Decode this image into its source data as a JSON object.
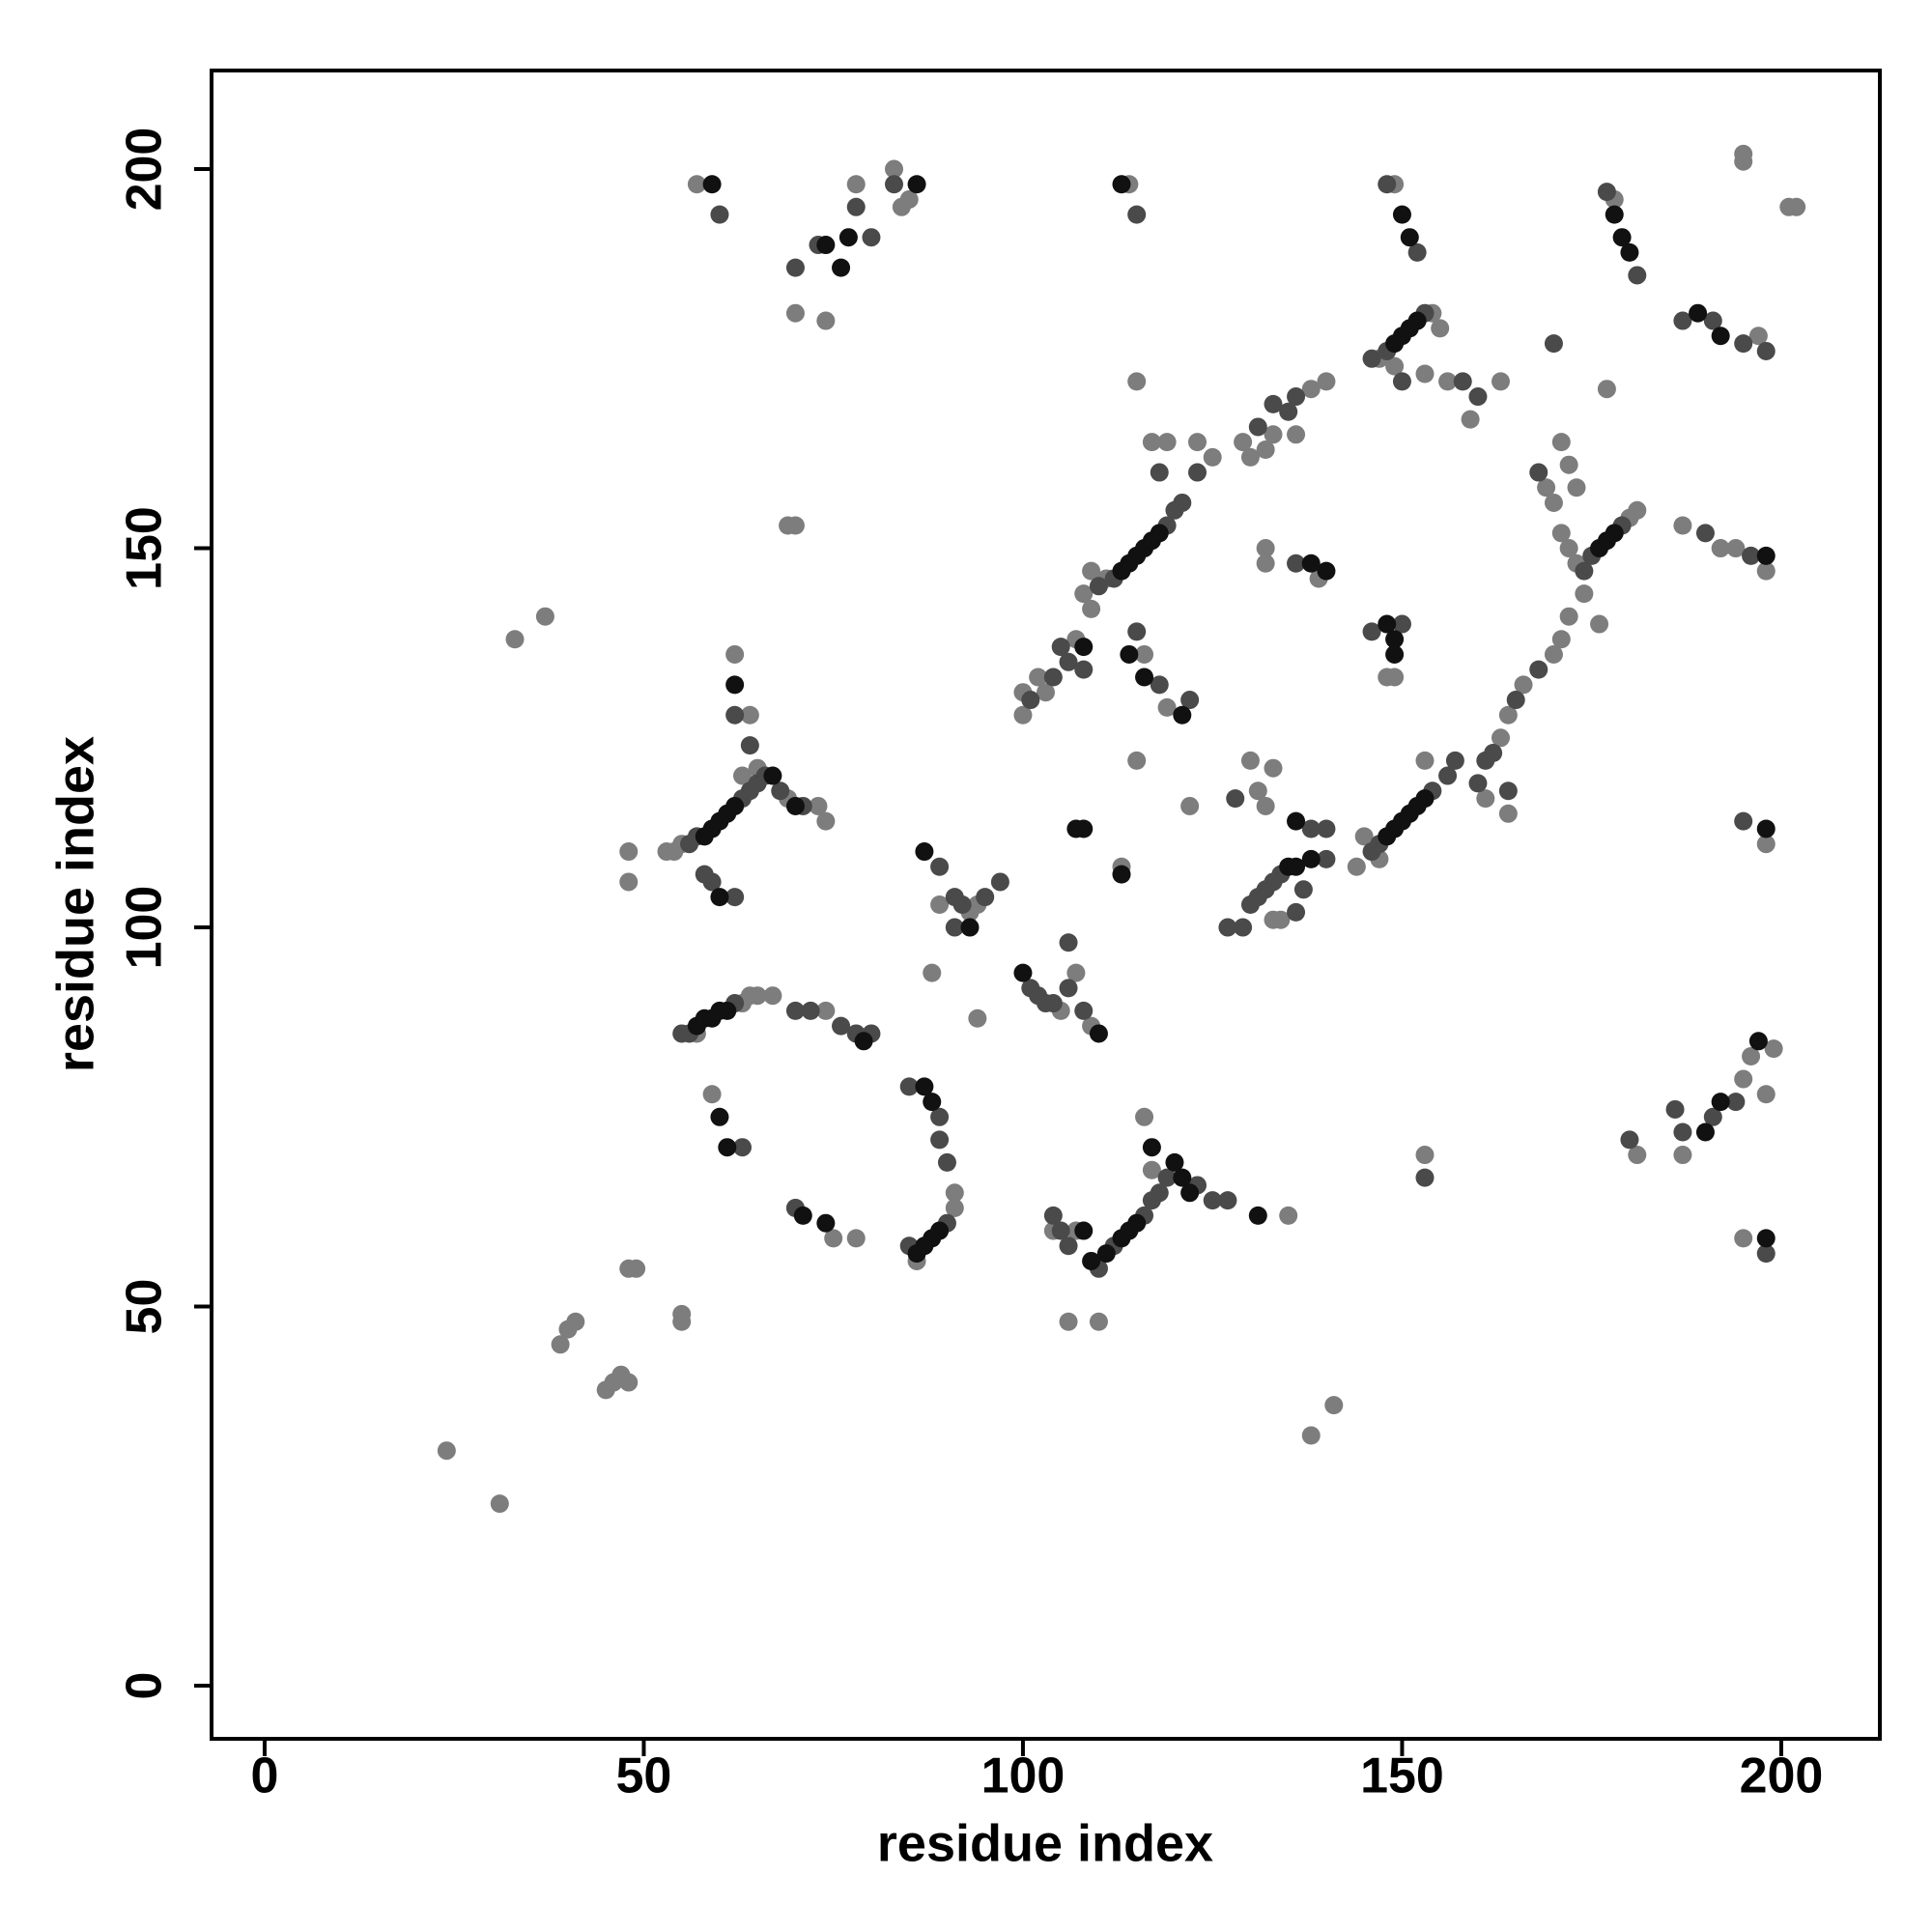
{
  "chart_data": {
    "type": "scatter",
    "xlabel": "residue index",
    "ylabel": "residue index",
    "xlim": [
      -7,
      213
    ],
    "ylim": [
      -7,
      213
    ],
    "xticks": [
      0,
      50,
      100,
      150,
      200
    ],
    "yticks": [
      0,
      50,
      100,
      150,
      200
    ],
    "grid": false,
    "series": [
      {
        "color": "#7d7d7d",
        "x": [
          57,
          84,
          85,
          83,
          70,
          74,
          78,
          114,
          149,
          178,
          197,
          147,
          154,
          155,
          149,
          153,
          156,
          163,
          159,
          138,
          140,
          129,
          130,
          132,
          133,
          136,
          125,
          123,
          108,
          109,
          111,
          119,
          117,
          115,
          109,
          107,
          102,
          100,
          100,
          103,
          116,
          119,
          115,
          122,
          139,
          132,
          132,
          149,
          148,
          144,
          145,
          147,
          153,
          163,
          164,
          166,
          170,
          171,
          172,
          164,
          161,
          169,
          170,
          171,
          172,
          173,
          180,
          181,
          174,
          176,
          171,
          172,
          173,
          177,
          187,
          192,
          194,
          198,
          198,
          195,
          196,
          199,
          198,
          181,
          187,
          195,
          153,
          53,
          54,
          55,
          69,
          73,
          74,
          62,
          64,
          63,
          65,
          48,
          48,
          69,
          70,
          33,
          37,
          57,
          63,
          64,
          65,
          67,
          74,
          59,
          70,
          75,
          78,
          91,
          91,
          86,
          93,
          94,
          89,
          88,
          94,
          105,
          107,
          109,
          113,
          107,
          110,
          106,
          104,
          116,
          117,
          135,
          133,
          130,
          131,
          132,
          133,
          134,
          24,
          31,
          39,
          40,
          41,
          45,
          46,
          47,
          48,
          48,
          49,
          55,
          55,
          138,
          141,
          202,
          201,
          195,
          195
        ],
        "values": [
          198,
          195,
          196,
          200,
          181,
          180,
          198,
          198,
          198,
          196,
          178,
          175,
          181,
          179,
          174,
          173,
          172,
          172,
          167,
          171,
          172,
          164,
          162,
          163,
          165,
          165,
          162,
          164,
          144,
          147,
          146,
          164,
          164,
          172,
          142,
          138,
          133,
          131,
          128,
          131,
          136,
          129,
          122,
          116,
          146,
          150,
          148,
          133,
          133,
          108,
          112,
          109,
          122,
          125,
          128,
          132,
          136,
          138,
          141,
          115,
          117,
          158,
          156,
          152,
          150,
          148,
          154,
          155,
          144,
          140,
          164,
          161,
          158,
          171,
          153,
          150,
          150,
          147,
          111,
          80,
          83,
          84,
          78,
          70,
          70,
          59,
          70,
          110,
          110,
          111,
          117,
          116,
          114,
          136,
          128,
          120,
          121,
          110,
          106,
          153,
          153,
          138,
          141,
          86,
          90,
          91,
          91,
          91,
          89,
          78,
          63,
          59,
          59,
          65,
          63,
          56,
          102,
          103,
          103,
          94,
          88,
          89,
          94,
          87,
          108,
          60,
          48,
          48,
          60,
          75,
          68,
          62,
          121,
          122,
          118,
          116,
          101,
          101,
          31,
          24,
          45,
          47,
          48,
          39,
          40,
          41,
          40,
          55,
          55,
          48,
          49,
          33,
          37,
          195,
          195,
          202,
          201
        ]
      },
      {
        "color": "#4a4a4a",
        "x": [
          60,
          73,
          78,
          83,
          115,
          148,
          152,
          177,
          181,
          187,
          191,
          195,
          198,
          146,
          148,
          153,
          150,
          160,
          158,
          136,
          133,
          135,
          131,
          123,
          110,
          112,
          119,
          120,
          121,
          118,
          104,
          106,
          105,
          101,
          108,
          115,
          118,
          122,
          136,
          146,
          150,
          146,
          147,
          154,
          156,
          157,
          161,
          162,
          165,
          168,
          164,
          160,
          168,
          174,
          175,
          179,
          170,
          190,
          196,
          195,
          186,
          187,
          191,
          194,
          180,
          198,
          153,
          56,
          57,
          63,
          64,
          65,
          66,
          68,
          71,
          62,
          64,
          59,
          62,
          58,
          55,
          56,
          62,
          70,
          72,
          76,
          78,
          80,
          63,
          70,
          85,
          89,
          89,
          90,
          90,
          85,
          89,
          91,
          92,
          95,
          97,
          91,
          101,
          102,
          103,
          104,
          106,
          108,
          106,
          104,
          105,
          106,
          110,
          112,
          116,
          117,
          118,
          119,
          123,
          125,
          127,
          127,
          129,
          130,
          131,
          132,
          133,
          134,
          140,
          138,
          140,
          128,
          136,
          137,
          70,
          80
        ],
        "values": [
          194,
          190,
          195,
          198,
          194,
          198,
          189,
          197,
          186,
          180,
          180,
          177,
          176,
          175,
          176,
          181,
          172,
          170,
          172,
          170,
          169,
          168,
          166,
          160,
          145,
          146,
          153,
          155,
          156,
          160,
          133,
          135,
          137,
          130,
          134,
          139,
          132,
          130,
          148,
          139,
          140,
          110,
          111,
          118,
          120,
          122,
          122,
          123,
          130,
          134,
          118,
          119,
          160,
          147,
          149,
          153,
          177,
          152,
          149,
          114,
          76,
          73,
          75,
          77,
          72,
          57,
          67,
          111,
          112,
          117,
          118,
          119,
          120,
          118,
          116,
          128,
          124,
          106,
          104,
          107,
          86,
          86,
          90,
          89,
          89,
          87,
          86,
          86,
          71,
          63,
          79,
          75,
          72,
          69,
          61,
          58,
          108,
          104,
          103,
          104,
          106,
          100,
          92,
          91,
          90,
          90,
          92,
          89,
          98,
          62,
          60,
          58,
          55,
          58,
          62,
          64,
          65,
          67,
          66,
          64,
          64,
          100,
          100,
          103,
          104,
          105,
          106,
          107,
          109,
          113,
          113,
          117,
          102,
          105,
          187,
          191
        ]
      },
      {
        "color": "#111111",
        "x": [
          86,
          59,
          74,
          77,
          76,
          113,
          150,
          151,
          178,
          179,
          180,
          189,
          192,
          150,
          151,
          152,
          149,
          113,
          114,
          115,
          116,
          117,
          118,
          108,
          114,
          116,
          121,
          138,
          140,
          148,
          149,
          149,
          148,
          149,
          150,
          151,
          152,
          153,
          176,
          177,
          178,
          198,
          198,
          197,
          192,
          190,
          198,
          58,
          59,
          60,
          61,
          62,
          67,
          70,
          62,
          60,
          57,
          58,
          59,
          60,
          61,
          79,
          60,
          61,
          71,
          74,
          87,
          88,
          89,
          88,
          87,
          86,
          87,
          93,
          100,
          110,
          107,
          108,
          113,
          108,
          109,
          111,
          113,
          114,
          115,
          117,
          120,
          121,
          122,
          131,
          135,
          136,
          138,
          136
        ],
        "values": [
          198,
          198,
          190,
          191,
          187,
          198,
          194,
          191,
          194,
          191,
          189,
          181,
          178,
          178,
          179,
          180,
          177,
          147,
          148,
          149,
          150,
          151,
          152,
          137,
          136,
          133,
          128,
          148,
          147,
          140,
          138,
          136,
          112,
          113,
          114,
          115,
          116,
          117,
          150,
          151,
          152,
          149,
          113,
          85,
          77,
          73,
          59,
          112,
          113,
          114,
          115,
          116,
          120,
          116,
          132,
          104,
          87,
          88,
          88,
          89,
          89,
          85,
          75,
          71,
          62,
          61,
          79,
          77,
          60,
          59,
          58,
          57,
          110,
          100,
          94,
          86,
          113,
          113,
          107,
          60,
          56,
          57,
          59,
          60,
          61,
          71,
          69,
          67,
          65,
          62,
          108,
          108,
          109,
          114
        ]
      }
    ]
  }
}
